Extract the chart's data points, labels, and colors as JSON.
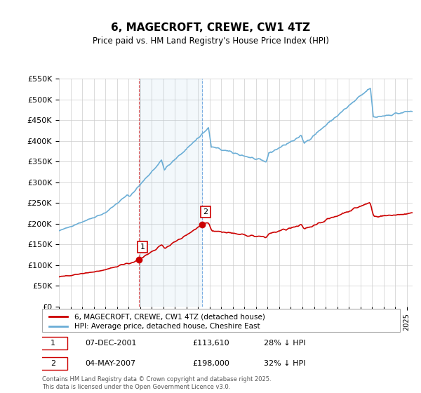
{
  "title": "6, MAGECROFT, CREWE, CW1 4TZ",
  "subtitle": "Price paid vs. HM Land Registry's House Price Index (HPI)",
  "ylabel_values": [
    "£0",
    "£50K",
    "£100K",
    "£150K",
    "£200K",
    "£250K",
    "£300K",
    "£350K",
    "£400K",
    "£450K",
    "£500K",
    "£550K"
  ],
  "ylim": [
    0,
    550000
  ],
  "yticks": [
    0,
    50000,
    100000,
    150000,
    200000,
    250000,
    300000,
    350000,
    400000,
    450000,
    500000,
    550000
  ],
  "xmin": 1995.0,
  "xmax": 2025.5,
  "hpi_color": "#6baed6",
  "price_color": "#cc0000",
  "sale1_x": 2001.92,
  "sale1_y": 113610,
  "sale2_x": 2007.34,
  "sale2_y": 198000,
  "vline1_x": 2001.92,
  "vline2_x": 2007.34,
  "legend_house": "6, MAGECROFT, CREWE, CW1 4TZ (detached house)",
  "legend_hpi": "HPI: Average price, detached house, Cheshire East",
  "annotation1_label": "1",
  "annotation1_date": "07-DEC-2001",
  "annotation1_price": "£113,610",
  "annotation1_pct": "28% ↓ HPI",
  "annotation2_label": "2",
  "annotation2_date": "04-MAY-2007",
  "annotation2_price": "£198,000",
  "annotation2_pct": "32% ↓ HPI",
  "footer": "Contains HM Land Registry data © Crown copyright and database right 2025.\nThis data is licensed under the Open Government Licence v3.0.",
  "background_color": "#ffffff",
  "grid_color": "#cccccc"
}
